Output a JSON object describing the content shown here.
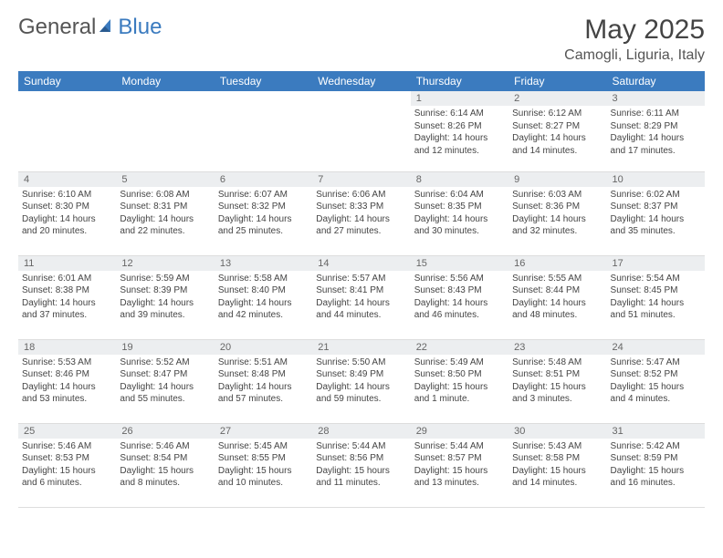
{
  "logo": {
    "part1": "General",
    "part2": "Blue"
  },
  "title": "May 2025",
  "location": "Camogli, Liguria, Italy",
  "colors": {
    "header_bg": "#3b7bbf",
    "header_text": "#ffffff",
    "daynum_bg": "#eceef0",
    "text": "#444444"
  },
  "dayHeaders": [
    "Sunday",
    "Monday",
    "Tuesday",
    "Wednesday",
    "Thursday",
    "Friday",
    "Saturday"
  ],
  "weeks": [
    [
      {
        "n": "",
        "sr": "",
        "ss": "",
        "dl": ""
      },
      {
        "n": "",
        "sr": "",
        "ss": "",
        "dl": ""
      },
      {
        "n": "",
        "sr": "",
        "ss": "",
        "dl": ""
      },
      {
        "n": "",
        "sr": "",
        "ss": "",
        "dl": ""
      },
      {
        "n": "1",
        "sr": "Sunrise: 6:14 AM",
        "ss": "Sunset: 8:26 PM",
        "dl": "Daylight: 14 hours and 12 minutes."
      },
      {
        "n": "2",
        "sr": "Sunrise: 6:12 AM",
        "ss": "Sunset: 8:27 PM",
        "dl": "Daylight: 14 hours and 14 minutes."
      },
      {
        "n": "3",
        "sr": "Sunrise: 6:11 AM",
        "ss": "Sunset: 8:29 PM",
        "dl": "Daylight: 14 hours and 17 minutes."
      }
    ],
    [
      {
        "n": "4",
        "sr": "Sunrise: 6:10 AM",
        "ss": "Sunset: 8:30 PM",
        "dl": "Daylight: 14 hours and 20 minutes."
      },
      {
        "n": "5",
        "sr": "Sunrise: 6:08 AM",
        "ss": "Sunset: 8:31 PM",
        "dl": "Daylight: 14 hours and 22 minutes."
      },
      {
        "n": "6",
        "sr": "Sunrise: 6:07 AM",
        "ss": "Sunset: 8:32 PM",
        "dl": "Daylight: 14 hours and 25 minutes."
      },
      {
        "n": "7",
        "sr": "Sunrise: 6:06 AM",
        "ss": "Sunset: 8:33 PM",
        "dl": "Daylight: 14 hours and 27 minutes."
      },
      {
        "n": "8",
        "sr": "Sunrise: 6:04 AM",
        "ss": "Sunset: 8:35 PM",
        "dl": "Daylight: 14 hours and 30 minutes."
      },
      {
        "n": "9",
        "sr": "Sunrise: 6:03 AM",
        "ss": "Sunset: 8:36 PM",
        "dl": "Daylight: 14 hours and 32 minutes."
      },
      {
        "n": "10",
        "sr": "Sunrise: 6:02 AM",
        "ss": "Sunset: 8:37 PM",
        "dl": "Daylight: 14 hours and 35 minutes."
      }
    ],
    [
      {
        "n": "11",
        "sr": "Sunrise: 6:01 AM",
        "ss": "Sunset: 8:38 PM",
        "dl": "Daylight: 14 hours and 37 minutes."
      },
      {
        "n": "12",
        "sr": "Sunrise: 5:59 AM",
        "ss": "Sunset: 8:39 PM",
        "dl": "Daylight: 14 hours and 39 minutes."
      },
      {
        "n": "13",
        "sr": "Sunrise: 5:58 AM",
        "ss": "Sunset: 8:40 PM",
        "dl": "Daylight: 14 hours and 42 minutes."
      },
      {
        "n": "14",
        "sr": "Sunrise: 5:57 AM",
        "ss": "Sunset: 8:41 PM",
        "dl": "Daylight: 14 hours and 44 minutes."
      },
      {
        "n": "15",
        "sr": "Sunrise: 5:56 AM",
        "ss": "Sunset: 8:43 PM",
        "dl": "Daylight: 14 hours and 46 minutes."
      },
      {
        "n": "16",
        "sr": "Sunrise: 5:55 AM",
        "ss": "Sunset: 8:44 PM",
        "dl": "Daylight: 14 hours and 48 minutes."
      },
      {
        "n": "17",
        "sr": "Sunrise: 5:54 AM",
        "ss": "Sunset: 8:45 PM",
        "dl": "Daylight: 14 hours and 51 minutes."
      }
    ],
    [
      {
        "n": "18",
        "sr": "Sunrise: 5:53 AM",
        "ss": "Sunset: 8:46 PM",
        "dl": "Daylight: 14 hours and 53 minutes."
      },
      {
        "n": "19",
        "sr": "Sunrise: 5:52 AM",
        "ss": "Sunset: 8:47 PM",
        "dl": "Daylight: 14 hours and 55 minutes."
      },
      {
        "n": "20",
        "sr": "Sunrise: 5:51 AM",
        "ss": "Sunset: 8:48 PM",
        "dl": "Daylight: 14 hours and 57 minutes."
      },
      {
        "n": "21",
        "sr": "Sunrise: 5:50 AM",
        "ss": "Sunset: 8:49 PM",
        "dl": "Daylight: 14 hours and 59 minutes."
      },
      {
        "n": "22",
        "sr": "Sunrise: 5:49 AM",
        "ss": "Sunset: 8:50 PM",
        "dl": "Daylight: 15 hours and 1 minute."
      },
      {
        "n": "23",
        "sr": "Sunrise: 5:48 AM",
        "ss": "Sunset: 8:51 PM",
        "dl": "Daylight: 15 hours and 3 minutes."
      },
      {
        "n": "24",
        "sr": "Sunrise: 5:47 AM",
        "ss": "Sunset: 8:52 PM",
        "dl": "Daylight: 15 hours and 4 minutes."
      }
    ],
    [
      {
        "n": "25",
        "sr": "Sunrise: 5:46 AM",
        "ss": "Sunset: 8:53 PM",
        "dl": "Daylight: 15 hours and 6 minutes."
      },
      {
        "n": "26",
        "sr": "Sunrise: 5:46 AM",
        "ss": "Sunset: 8:54 PM",
        "dl": "Daylight: 15 hours and 8 minutes."
      },
      {
        "n": "27",
        "sr": "Sunrise: 5:45 AM",
        "ss": "Sunset: 8:55 PM",
        "dl": "Daylight: 15 hours and 10 minutes."
      },
      {
        "n": "28",
        "sr": "Sunrise: 5:44 AM",
        "ss": "Sunset: 8:56 PM",
        "dl": "Daylight: 15 hours and 11 minutes."
      },
      {
        "n": "29",
        "sr": "Sunrise: 5:44 AM",
        "ss": "Sunset: 8:57 PM",
        "dl": "Daylight: 15 hours and 13 minutes."
      },
      {
        "n": "30",
        "sr": "Sunrise: 5:43 AM",
        "ss": "Sunset: 8:58 PM",
        "dl": "Daylight: 15 hours and 14 minutes."
      },
      {
        "n": "31",
        "sr": "Sunrise: 5:42 AM",
        "ss": "Sunset: 8:59 PM",
        "dl": "Daylight: 15 hours and 16 minutes."
      }
    ]
  ]
}
